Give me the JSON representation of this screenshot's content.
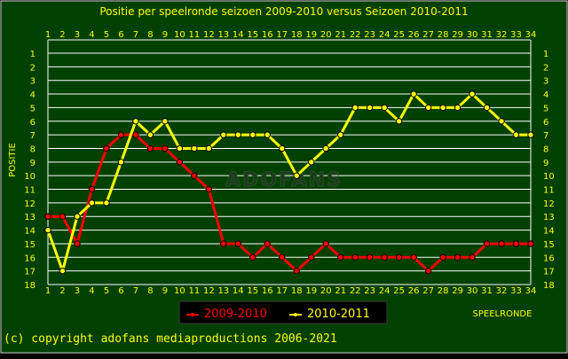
{
  "chart_data": {
    "type": "line",
    "title": "Positie per speelronde seizoen 2009-2010 versus Seizoen 2010-2011",
    "xlabel": "SPEELRONDE",
    "ylabel": "POSITIE",
    "x": [
      1,
      2,
      3,
      4,
      5,
      6,
      7,
      8,
      9,
      10,
      11,
      12,
      13,
      14,
      15,
      16,
      17,
      18,
      19,
      20,
      21,
      22,
      23,
      24,
      25,
      26,
      27,
      28,
      29,
      30,
      31,
      32,
      33,
      34
    ],
    "xlim": [
      1,
      34
    ],
    "ylim": [
      1,
      18
    ],
    "y_inverted": true,
    "grid": true,
    "watermark": "ADOFANS",
    "legend_placement": "bottom-center",
    "series": [
      {
        "name": "2009-2010",
        "color": "#ff0000",
        "values": [
          13,
          13,
          15,
          11,
          8,
          7,
          7,
          8,
          8,
          9,
          10,
          11,
          15,
          15,
          16,
          15,
          16,
          17,
          16,
          15,
          16,
          16,
          16,
          16,
          16,
          16,
          17,
          16,
          16,
          16,
          15,
          15,
          15,
          15
        ]
      },
      {
        "name": "2010-2011",
        "color": "#ffff00",
        "values": [
          14,
          17,
          13,
          12,
          12,
          9,
          6,
          7,
          6,
          8,
          8,
          8,
          7,
          7,
          7,
          7,
          8,
          10,
          9,
          8,
          7,
          5,
          5,
          5,
          6,
          4,
          5,
          5,
          5,
          4,
          5,
          6,
          7,
          7
        ]
      }
    ]
  },
  "colors": {
    "plot_background": "#004000",
    "grid": "#ffffff",
    "text": "#ffff00",
    "frame": "#ffffff"
  },
  "footer": "(c) copyright adofans mediaproductions 2006-2021"
}
